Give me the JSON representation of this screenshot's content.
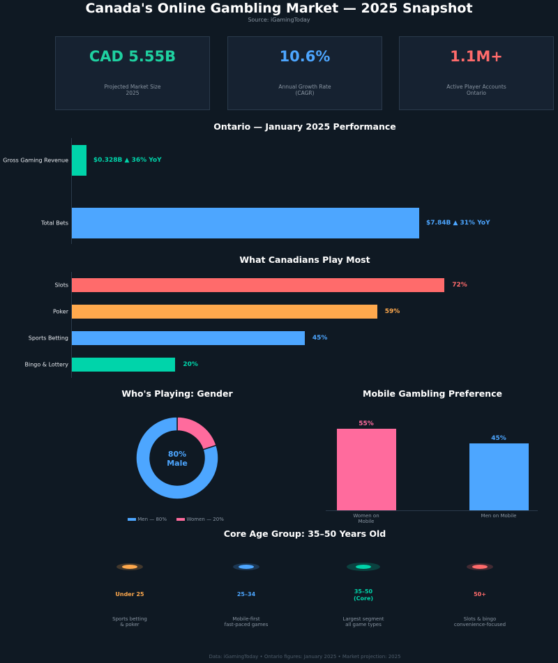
{
  "header": {
    "title": "Canada's Online Gambling Market — 2025 Snapshot",
    "source": "Source: iGamingToday"
  },
  "cards": [
    {
      "value": "CAD 5.55B",
      "label1": "Projected Market Size",
      "label2": "2025",
      "color": "#1fd1a1"
    },
    {
      "value": "10.6%",
      "label1": "Annual Growth Rate",
      "label2": "(CAGR)",
      "color": "#4da6ff"
    },
    {
      "value": "1.1M+",
      "label1": "Active Player Accounts",
      "label2": "Ontario",
      "color": "#ff6b6b"
    }
  ],
  "chart_data": [
    {
      "type": "bar",
      "orientation": "horizontal",
      "title": "Ontario — January 2025 Performance",
      "categories": [
        "Gross Gaming Revenue",
        "Total Bets"
      ],
      "values": [
        0.328,
        7.84
      ],
      "unit": "CAD billions",
      "data_labels": [
        "$0.328B  ▲ 36% YoY",
        "$7.84B  ▲ 31% YoY"
      ],
      "colors": [
        "#00d4aa",
        "#4da6ff"
      ]
    },
    {
      "type": "bar",
      "orientation": "horizontal",
      "title": "What Canadians Play Most",
      "categories": [
        "Slots",
        "Poker",
        "Sports Betting",
        "Bingo & Lottery"
      ],
      "values": [
        72,
        59,
        45,
        20
      ],
      "data_labels": [
        "72%",
        "59%",
        "45%",
        "20%"
      ],
      "colors": [
        "#ff6b6b",
        "#ffa94d",
        "#4da6ff",
        "#00d4aa"
      ]
    },
    {
      "type": "pie",
      "donut": true,
      "title": "Who's Playing: Gender",
      "categories": [
        "Men",
        "Women"
      ],
      "values": [
        80,
        20
      ],
      "colors": [
        "#4da6ff",
        "#ff6b9d"
      ],
      "center_label": [
        "80%",
        "Male"
      ],
      "legend": [
        "Men — 80%",
        "Women — 20%"
      ],
      "legend_placement": "bottom"
    },
    {
      "type": "bar",
      "title": "Mobile Gambling Preference",
      "categories": [
        "Women on Mobile",
        "Men on Mobile"
      ],
      "values": [
        55,
        45
      ],
      "data_labels": [
        "55%",
        "45%"
      ],
      "colors": [
        "#ff6b9d",
        "#4da6ff"
      ]
    }
  ],
  "age": {
    "title": "Core Age Group: 35–50 Years Old",
    "groups": [
      {
        "label": "Under 25",
        "line2": "",
        "desc1": "Sports betting",
        "desc2": "& poker",
        "color": "#ffa94d"
      },
      {
        "label": "25–34",
        "line2": "",
        "desc1": "Mobile-first",
        "desc2": "fast-paced games",
        "color": "#4da6ff"
      },
      {
        "label": "35–50",
        "line2": "(Core)",
        "desc1": "Largest segment",
        "desc2": "all game types",
        "color": "#00d4aa"
      },
      {
        "label": "50+",
        "line2": "",
        "desc1": "Slots & bingo",
        "desc2": "convenience-focused",
        "color": "#ff6b6b"
      }
    ]
  },
  "footer": "Data: iGamingToday  •  Ontario figures: January 2025  •  Market projection: 2025"
}
